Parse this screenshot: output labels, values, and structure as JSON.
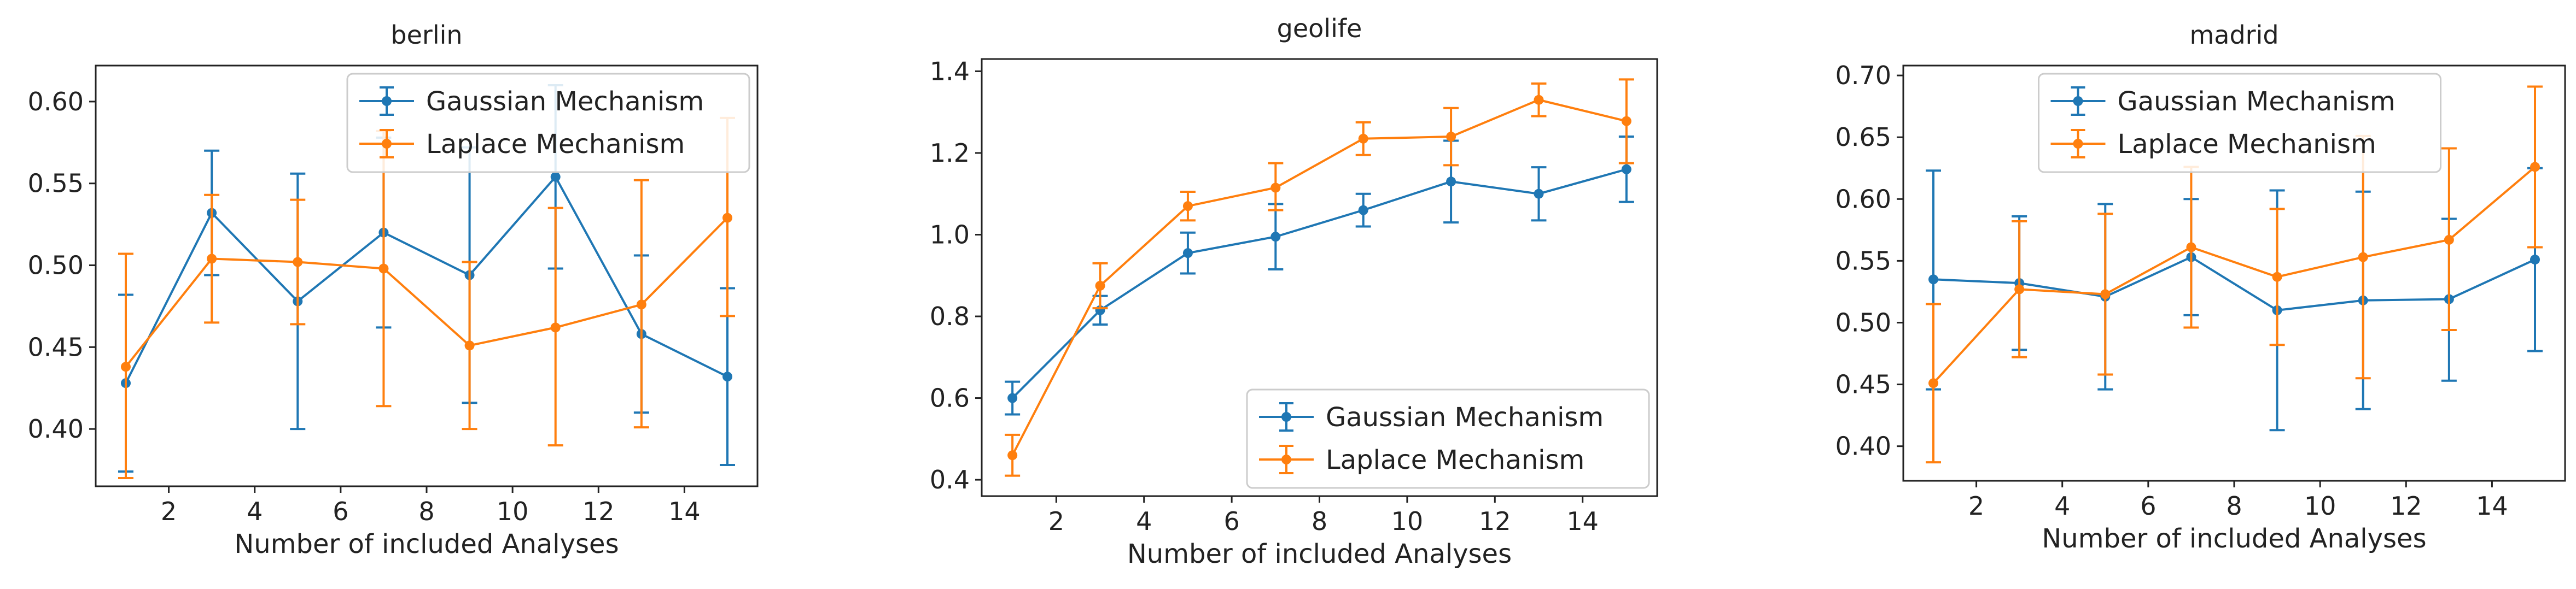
{
  "figure": {
    "colors": {
      "gaussian": "#1f77b4",
      "laplace": "#ff7f0e"
    }
  },
  "chart_data": [
    {
      "type": "line",
      "title": "berlin",
      "xlabel": "Number of included Analyses",
      "ylabel": "",
      "x": [
        1,
        3,
        5,
        7,
        9,
        11,
        13,
        15
      ],
      "xlim": [
        0.3,
        15.7
      ],
      "ylim": [
        0.365,
        0.622
      ],
      "xticks": [
        2,
        4,
        6,
        8,
        10,
        12,
        14
      ],
      "yticks": [
        "0.40",
        "0.45",
        "0.50",
        "0.55",
        "0.60"
      ],
      "legend": "top-right",
      "series": [
        {
          "name": "Gaussian Mechanism",
          "values": [
            0.428,
            0.532,
            0.478,
            0.52,
            0.494,
            0.554,
            0.458,
            0.432
          ],
          "err_low": [
            0.374,
            0.494,
            0.4,
            0.462,
            0.416,
            0.498,
            0.41,
            0.378
          ],
          "err_high": [
            0.482,
            0.57,
            0.556,
            0.578,
            0.572,
            0.61,
            0.506,
            0.486
          ]
        },
        {
          "name": "Laplace Mechanism",
          "values": [
            0.438,
            0.504,
            0.502,
            0.498,
            0.451,
            0.462,
            0.476,
            0.529
          ],
          "err_low": [
            0.37,
            0.465,
            0.464,
            0.414,
            0.4,
            0.39,
            0.401,
            0.469
          ],
          "err_high": [
            0.507,
            0.543,
            0.54,
            0.582,
            0.502,
            0.535,
            0.552,
            0.59
          ]
        }
      ]
    },
    {
      "type": "line",
      "title": "geolife",
      "xlabel": "Number of included Analyses",
      "ylabel": "",
      "x": [
        1,
        3,
        5,
        7,
        9,
        11,
        13,
        15
      ],
      "xlim": [
        0.3,
        15.7
      ],
      "ylim": [
        0.36,
        1.43
      ],
      "xticks": [
        2,
        4,
        6,
        8,
        10,
        12,
        14
      ],
      "yticks": [
        "0.4",
        "0.6",
        "0.8",
        "1.0",
        "1.2",
        "1.4"
      ],
      "legend": "bottom-right",
      "series": [
        {
          "name": "Gaussian Mechanism",
          "values": [
            0.6,
            0.815,
            0.955,
            0.995,
            1.06,
            1.13,
            1.1,
            1.16
          ],
          "err_low": [
            0.56,
            0.78,
            0.905,
            0.915,
            1.02,
            1.03,
            1.035,
            1.08
          ],
          "err_high": [
            0.64,
            0.85,
            1.005,
            1.075,
            1.1,
            1.23,
            1.165,
            1.24
          ]
        },
        {
          "name": "Laplace Mechanism",
          "values": [
            0.46,
            0.875,
            1.07,
            1.115,
            1.235,
            1.24,
            1.33,
            1.278
          ],
          "err_low": [
            0.41,
            0.82,
            1.035,
            1.06,
            1.195,
            1.17,
            1.29,
            1.175
          ],
          "err_high": [
            0.51,
            0.93,
            1.105,
            1.175,
            1.275,
            1.31,
            1.37,
            1.38
          ]
        }
      ]
    },
    {
      "type": "line",
      "title": "madrid",
      "xlabel": "Number of included Analyses",
      "ylabel": "",
      "x": [
        1,
        3,
        5,
        7,
        9,
        11,
        13,
        15
      ],
      "xlim": [
        0.3,
        15.7
      ],
      "ylim": [
        0.372,
        0.708
      ],
      "xticks": [
        2,
        4,
        6,
        8,
        10,
        12,
        14
      ],
      "yticks": [
        "0.40",
        "0.45",
        "0.50",
        "0.55",
        "0.60",
        "0.65",
        "0.70"
      ],
      "legend": "top-center",
      "series": [
        {
          "name": "Gaussian Mechanism",
          "values": [
            0.535,
            0.532,
            0.521,
            0.553,
            0.51,
            0.518,
            0.519,
            0.551
          ],
          "err_low": [
            0.446,
            0.478,
            0.446,
            0.506,
            0.413,
            0.43,
            0.453,
            0.477
          ],
          "err_high": [
            0.623,
            0.586,
            0.596,
            0.6,
            0.607,
            0.606,
            0.584,
            0.625
          ]
        },
        {
          "name": "Laplace Mechanism",
          "values": [
            0.451,
            0.527,
            0.523,
            0.561,
            0.537,
            0.553,
            0.567,
            0.626
          ],
          "err_low": [
            0.387,
            0.472,
            0.458,
            0.496,
            0.482,
            0.455,
            0.494,
            0.561
          ],
          "err_high": [
            0.515,
            0.582,
            0.588,
            0.626,
            0.592,
            0.651,
            0.641,
            0.691
          ]
        }
      ]
    }
  ]
}
